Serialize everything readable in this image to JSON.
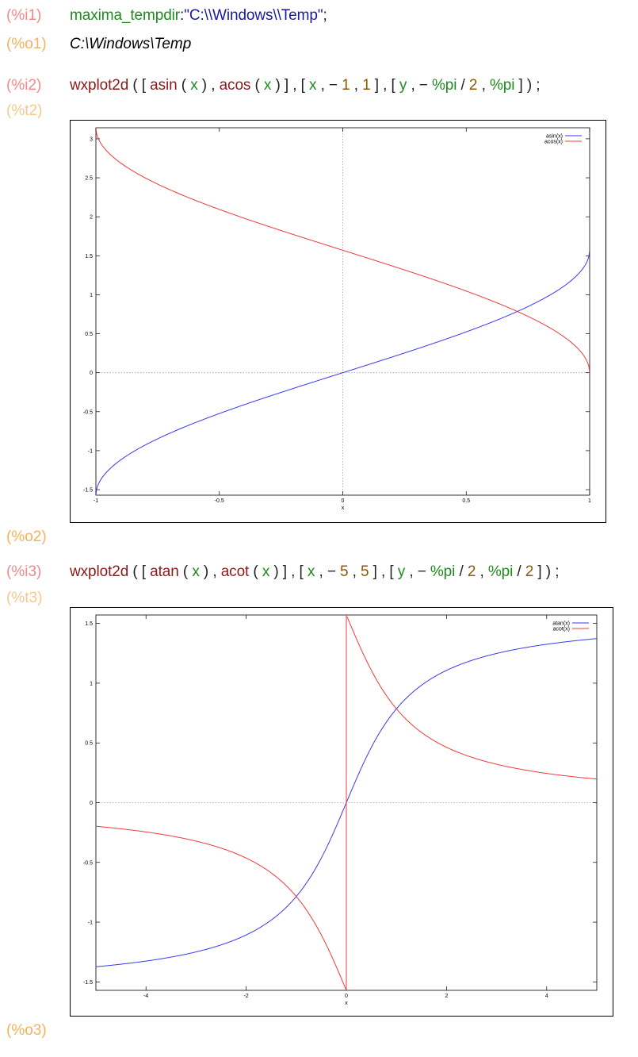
{
  "cells": {
    "i1": {
      "input_label": "(%i1)",
      "code": {
        "fn": "maxima_tempdir",
        "sep": ":",
        "str": "\"C:\\\\Windows\\\\Temp\"",
        "end": ";"
      },
      "output_label": "(%o1)",
      "output": "C:\\Windows\\Temp"
    },
    "i2": {
      "input_label": "(%i2)",
      "tokens": [
        {
          "t": "wxplot2d",
          "c": "fn"
        },
        {
          "t": " ( [ ",
          "c": "pun"
        },
        {
          "t": "asin",
          "c": "fn"
        },
        {
          "t": " ( ",
          "c": "pun"
        },
        {
          "t": "x",
          "c": "var"
        },
        {
          "t": " ) , ",
          "c": "pun"
        },
        {
          "t": "acos",
          "c": "fn"
        },
        {
          "t": " ( ",
          "c": "pun"
        },
        {
          "t": "x",
          "c": "var"
        },
        {
          "t": " ) ] , [ ",
          "c": "pun"
        },
        {
          "t": "x",
          "c": "var"
        },
        {
          "t": " , − ",
          "c": "pun"
        },
        {
          "t": "1",
          "c": "num"
        },
        {
          "t": " , ",
          "c": "pun"
        },
        {
          "t": "1",
          "c": "num"
        },
        {
          "t": " ] , [ ",
          "c": "pun"
        },
        {
          "t": "y",
          "c": "var"
        },
        {
          "t": " , − ",
          "c": "pun"
        },
        {
          "t": "%pi",
          "c": "var"
        },
        {
          "t": " / ",
          "c": "pun"
        },
        {
          "t": "2",
          "c": "num"
        },
        {
          "t": " , ",
          "c": "pun"
        },
        {
          "t": "%pi",
          "c": "var"
        },
        {
          "t": " ] ) ;",
          "c": "pun"
        }
      ],
      "t_label": "(%t2)",
      "output_label": "(%o2)"
    },
    "i3": {
      "input_label": "(%i3)",
      "tokens": [
        {
          "t": "wxplot2d",
          "c": "fn"
        },
        {
          "t": " ( [ ",
          "c": "pun"
        },
        {
          "t": "atan",
          "c": "fn"
        },
        {
          "t": " ( ",
          "c": "pun"
        },
        {
          "t": "x",
          "c": "var"
        },
        {
          "t": " ) , ",
          "c": "pun"
        },
        {
          "t": "acot",
          "c": "fn"
        },
        {
          "t": " ( ",
          "c": "pun"
        },
        {
          "t": "x",
          "c": "var"
        },
        {
          "t": " ) ] , [ ",
          "c": "pun"
        },
        {
          "t": "x",
          "c": "var"
        },
        {
          "t": " , − ",
          "c": "pun"
        },
        {
          "t": "5",
          "c": "num"
        },
        {
          "t": " , ",
          "c": "pun"
        },
        {
          "t": "5",
          "c": "num"
        },
        {
          "t": " ] , [ ",
          "c": "pun"
        },
        {
          "t": "y",
          "c": "var"
        },
        {
          "t": " , − ",
          "c": "pun"
        },
        {
          "t": "%pi",
          "c": "var"
        },
        {
          "t": " / ",
          "c": "pun"
        },
        {
          "t": "2",
          "c": "num"
        },
        {
          "t": " , ",
          "c": "pun"
        },
        {
          "t": "%pi",
          "c": "var"
        },
        {
          "t": " / ",
          "c": "pun"
        },
        {
          "t": "2",
          "c": "num"
        },
        {
          "t": " ] ) ;",
          "c": "pun"
        }
      ],
      "t_label": "(%t3)",
      "output_label": "(%o3)"
    }
  },
  "colors": {
    "asin": "#3a3af0",
    "acos": "#f03a3a",
    "atan": "#3a3af0",
    "acot": "#f03a3a",
    "label_in": "#f08a8a",
    "label_out": "#f5b25c"
  },
  "chart_data": [
    {
      "type": "line",
      "xlabel": "x",
      "xlim": [
        -1,
        1
      ],
      "ylim": [
        -1.5708,
        3.1416
      ],
      "xticks": [
        -1,
        -0.5,
        0,
        0.5,
        1
      ],
      "xtick_labels": [
        "-1",
        "-0.5",
        "0",
        "0.5",
        "1"
      ],
      "yticks": [
        -1.5,
        -1,
        -0.5,
        0,
        0.5,
        1,
        1.5,
        2,
        2.5,
        3
      ],
      "ytick_labels": [
        "-1.5",
        "-1",
        "-0.5",
        "0",
        "0.5",
        "1",
        "1.5",
        "2",
        "2.5",
        "3"
      ],
      "legend": "top-right",
      "series": [
        {
          "name": "asin(x)",
          "fn": "asin",
          "color": "#3a3af0"
        },
        {
          "name": "acos(x)",
          "fn": "acos",
          "color": "#f03a3a"
        }
      ]
    },
    {
      "type": "line",
      "xlabel": "x",
      "xlim": [
        -5,
        5
      ],
      "ylim": [
        -1.5708,
        1.5708
      ],
      "xticks": [
        -4,
        -2,
        0,
        2,
        4
      ],
      "xtick_labels": [
        "-4",
        "-2",
        "0",
        "2",
        "4"
      ],
      "yticks": [
        -1.5,
        -1,
        -0.5,
        0,
        0.5,
        1,
        1.5
      ],
      "ytick_labels": [
        "-1.5",
        "-1",
        "-0.5",
        "0",
        "0.5",
        "1",
        "1.5"
      ],
      "legend": "top-right",
      "series": [
        {
          "name": "atan(x)",
          "fn": "atan",
          "color": "#3a3af0"
        },
        {
          "name": "acot(x)",
          "fn": "acot",
          "color": "#f03a3a"
        }
      ]
    }
  ]
}
